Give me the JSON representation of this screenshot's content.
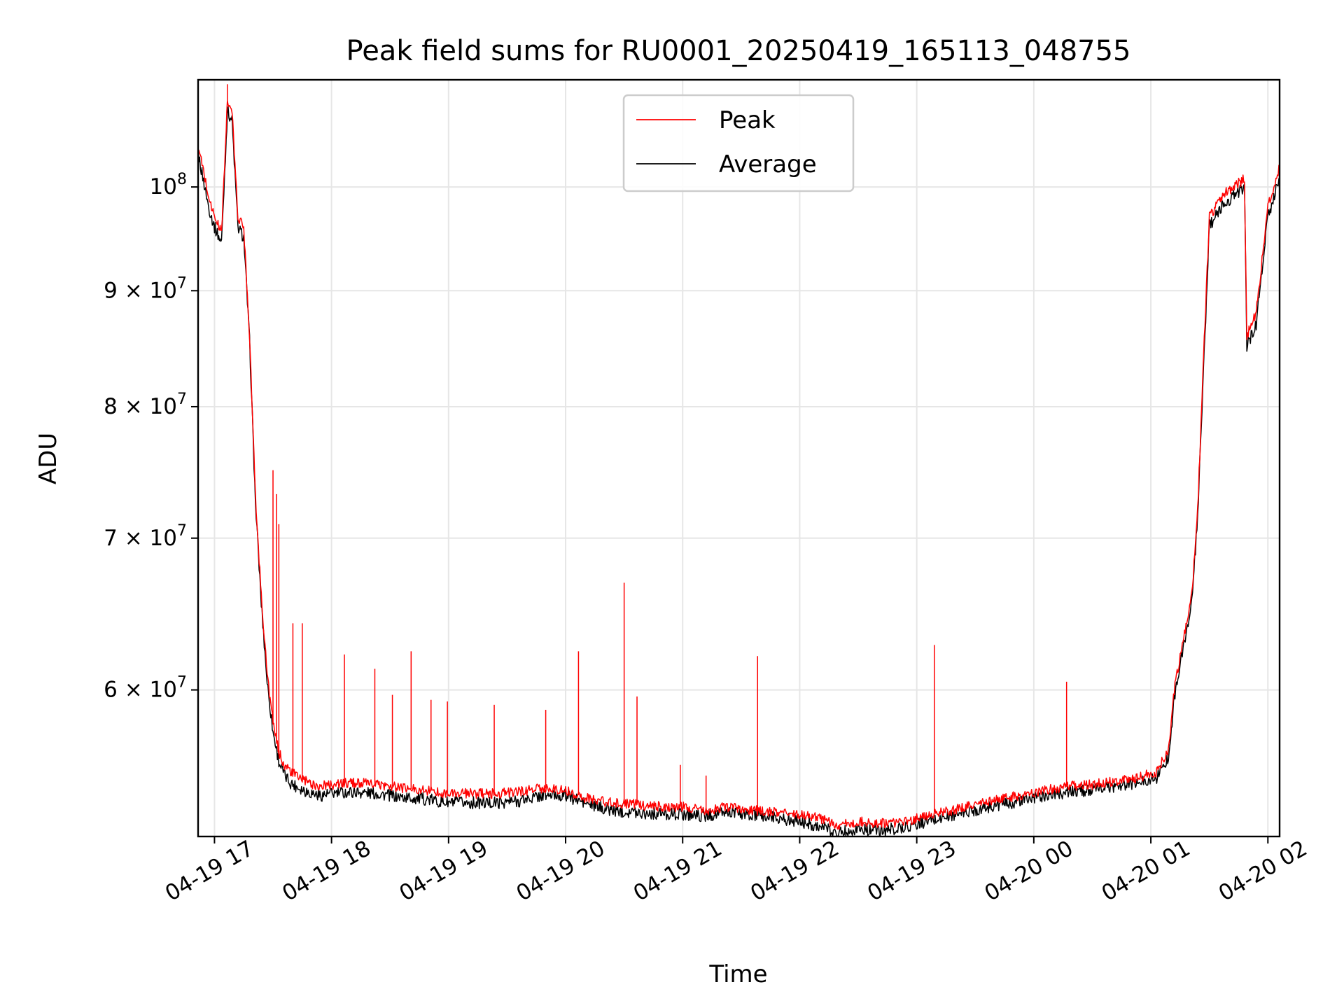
{
  "chart_data": {
    "type": "line",
    "title": "Peak field sums for RU0001_20250419_165113_048755",
    "xlabel": "Time",
    "ylabel": "ADU",
    "y_scale": "log",
    "ylim": [
      51700000,
      111500000
    ],
    "xlim_hours": [
      16.86,
      26.1
    ],
    "x_ticks": [
      {
        "hour": 17,
        "label": "04-19 17"
      },
      {
        "hour": 18,
        "label": "04-19 18"
      },
      {
        "hour": 19,
        "label": "04-19 19"
      },
      {
        "hour": 20,
        "label": "04-19 20"
      },
      {
        "hour": 21,
        "label": "04-19 21"
      },
      {
        "hour": 22,
        "label": "04-19 22"
      },
      {
        "hour": 23,
        "label": "04-19 23"
      },
      {
        "hour": 24,
        "label": "04-20 00"
      },
      {
        "hour": 25,
        "label": "04-20 01"
      },
      {
        "hour": 26,
        "label": "04-20 02"
      }
    ],
    "y_ticks": [
      {
        "value": 60000000,
        "base": "6 × 10",
        "exp": "7"
      },
      {
        "value": 70000000,
        "base": "7 × 10",
        "exp": "7"
      },
      {
        "value": 80000000,
        "base": "8 × 10",
        "exp": "7"
      },
      {
        "value": 90000000,
        "base": "9 × 10",
        "exp": "7"
      },
      {
        "value": 100000000,
        "base": "10",
        "exp": "8"
      }
    ],
    "legend": {
      "position": "upper center",
      "entries": [
        {
          "name": "Peak",
          "color": "#ff0000"
        },
        {
          "name": "Average",
          "color": "#000000"
        }
      ]
    },
    "series": [
      {
        "name": "Peak",
        "color": "#ff0000",
        "x_hours": [
          16.86,
          16.9,
          16.95,
          17.0,
          17.06,
          17.1,
          17.11,
          17.15,
          17.2,
          17.25,
          17.3,
          17.35,
          17.4,
          17.45,
          17.5,
          17.55,
          17.6,
          17.65,
          17.7,
          17.8,
          17.9,
          18.0,
          18.2,
          18.4,
          18.6,
          18.8,
          19.0,
          19.2,
          19.4,
          19.6,
          19.8,
          20.0,
          20.2,
          20.4,
          20.6,
          20.8,
          21.0,
          21.2,
          21.4,
          21.6,
          21.8,
          22.0,
          22.2,
          22.3,
          22.5,
          22.7,
          22.9,
          23.1,
          23.3,
          23.5,
          23.7,
          23.9,
          24.1,
          24.3,
          24.5,
          24.7,
          24.9,
          25.05,
          25.15,
          25.2,
          25.25,
          25.3,
          25.35,
          25.4,
          25.45,
          25.5,
          25.55,
          25.6,
          25.7,
          25.8,
          25.82,
          25.9,
          26.0,
          26.1
        ],
        "y": [
          104000000,
          102000000,
          99000000,
          97000000,
          95500000,
          106000000,
          109000000,
          108000000,
          97000000,
          96000000,
          86000000,
          73000000,
          66000000,
          61000000,
          58000000,
          56300000,
          55600000,
          55200000,
          55000000,
          54600000,
          54400000,
          54500000,
          54600000,
          54500000,
          54300000,
          54200000,
          54000000,
          54000000,
          54000000,
          54100000,
          54300000,
          54200000,
          53700000,
          53500000,
          53400000,
          53300000,
          53300000,
          53100000,
          53300000,
          53100000,
          53000000,
          52900000,
          52600000,
          52300000,
          52500000,
          52400000,
          52500000,
          52800000,
          53100000,
          53400000,
          53700000,
          53900000,
          54200000,
          54400000,
          54500000,
          54700000,
          54900000,
          55200000,
          56500000,
          60000000,
          62000000,
          64000000,
          66000000,
          72000000,
          84000000,
          97000000,
          98000000,
          99000000,
          100000000,
          100800000,
          86000000,
          88000000,
          98000000,
          102000000
        ]
      },
      {
        "name": "Average",
        "color": "#000000",
        "x_hours": [
          16.86,
          16.9,
          16.95,
          17.0,
          17.06,
          17.1,
          17.11,
          17.15,
          17.2,
          17.25,
          17.3,
          17.35,
          17.4,
          17.45,
          17.5,
          17.55,
          17.6,
          17.65,
          17.7,
          17.8,
          17.9,
          18.0,
          18.2,
          18.4,
          18.6,
          18.8,
          19.0,
          19.2,
          19.4,
          19.6,
          19.8,
          20.0,
          20.2,
          20.4,
          20.6,
          20.8,
          21.0,
          21.2,
          21.4,
          21.6,
          21.8,
          22.0,
          22.2,
          22.3,
          22.5,
          22.7,
          22.9,
          23.1,
          23.3,
          23.5,
          23.7,
          23.9,
          24.1,
          24.3,
          24.5,
          24.7,
          24.9,
          25.05,
          25.15,
          25.2,
          25.25,
          25.3,
          25.35,
          25.4,
          25.45,
          25.5,
          25.55,
          25.6,
          25.7,
          25.8,
          25.82,
          25.9,
          26.0,
          26.1
        ],
        "y": [
          103500000,
          101000000,
          98000000,
          96000000,
          94500000,
          105000000,
          108000000,
          107000000,
          96000000,
          95000000,
          85500000,
          72500000,
          65500000,
          60500000,
          57500000,
          55800000,
          55000000,
          54600000,
          54400000,
          54100000,
          53900000,
          54000000,
          54100000,
          54000000,
          53800000,
          53700000,
          53500000,
          53500000,
          53500000,
          53600000,
          53900000,
          53900000,
          53400000,
          53100000,
          53000000,
          52900000,
          52900000,
          52800000,
          53000000,
          52800000,
          52700000,
          52500000,
          52200000,
          51900000,
          52100000,
          52000000,
          52200000,
          52500000,
          52800000,
          53100000,
          53400000,
          53600000,
          53900000,
          54100000,
          54200000,
          54400000,
          54600000,
          54900000,
          56000000,
          59500000,
          61500000,
          63500000,
          65500000,
          71500000,
          83000000,
          96000000,
          97000000,
          98000000,
          99000000,
          100000000,
          85000000,
          87000000,
          97000000,
          101000000
        ]
      }
    ],
    "spikes": [
      {
        "name": "Peak",
        "hour": 17.11,
        "value": 111000000
      },
      {
        "name": "Peak",
        "hour": 17.5,
        "value": 75000000
      },
      {
        "name": "Peak",
        "hour": 17.53,
        "value": 73200000
      },
      {
        "name": "Peak",
        "hour": 17.55,
        "value": 71000000
      },
      {
        "name": "Peak",
        "hour": 17.67,
        "value": 64200000
      },
      {
        "name": "Peak",
        "hour": 17.75,
        "value": 64200000
      },
      {
        "name": "Peak",
        "hour": 18.11,
        "value": 62200000
      },
      {
        "name": "Peak",
        "hour": 18.37,
        "value": 61300000
      },
      {
        "name": "Peak",
        "hour": 18.52,
        "value": 59700000
      },
      {
        "name": "Peak",
        "hour": 18.68,
        "value": 62400000
      },
      {
        "name": "Peak",
        "hour": 18.85,
        "value": 59400000
      },
      {
        "name": "Peak",
        "hour": 18.99,
        "value": 59300000
      },
      {
        "name": "Peak",
        "hour": 19.39,
        "value": 59100000
      },
      {
        "name": "Peak",
        "hour": 19.83,
        "value": 58800000
      },
      {
        "name": "Peak",
        "hour": 20.11,
        "value": 62400000
      },
      {
        "name": "Peak",
        "hour": 20.5,
        "value": 66900000
      },
      {
        "name": "Peak",
        "hour": 20.61,
        "value": 59600000
      },
      {
        "name": "Peak",
        "hour": 20.98,
        "value": 55600000
      },
      {
        "name": "Peak",
        "hour": 21.2,
        "value": 55000000
      },
      {
        "name": "Peak",
        "hour": 21.64,
        "value": 62100000
      },
      {
        "name": "Peak",
        "hour": 23.15,
        "value": 62800000
      },
      {
        "name": "Peak",
        "hour": 24.28,
        "value": 60500000
      }
    ]
  }
}
